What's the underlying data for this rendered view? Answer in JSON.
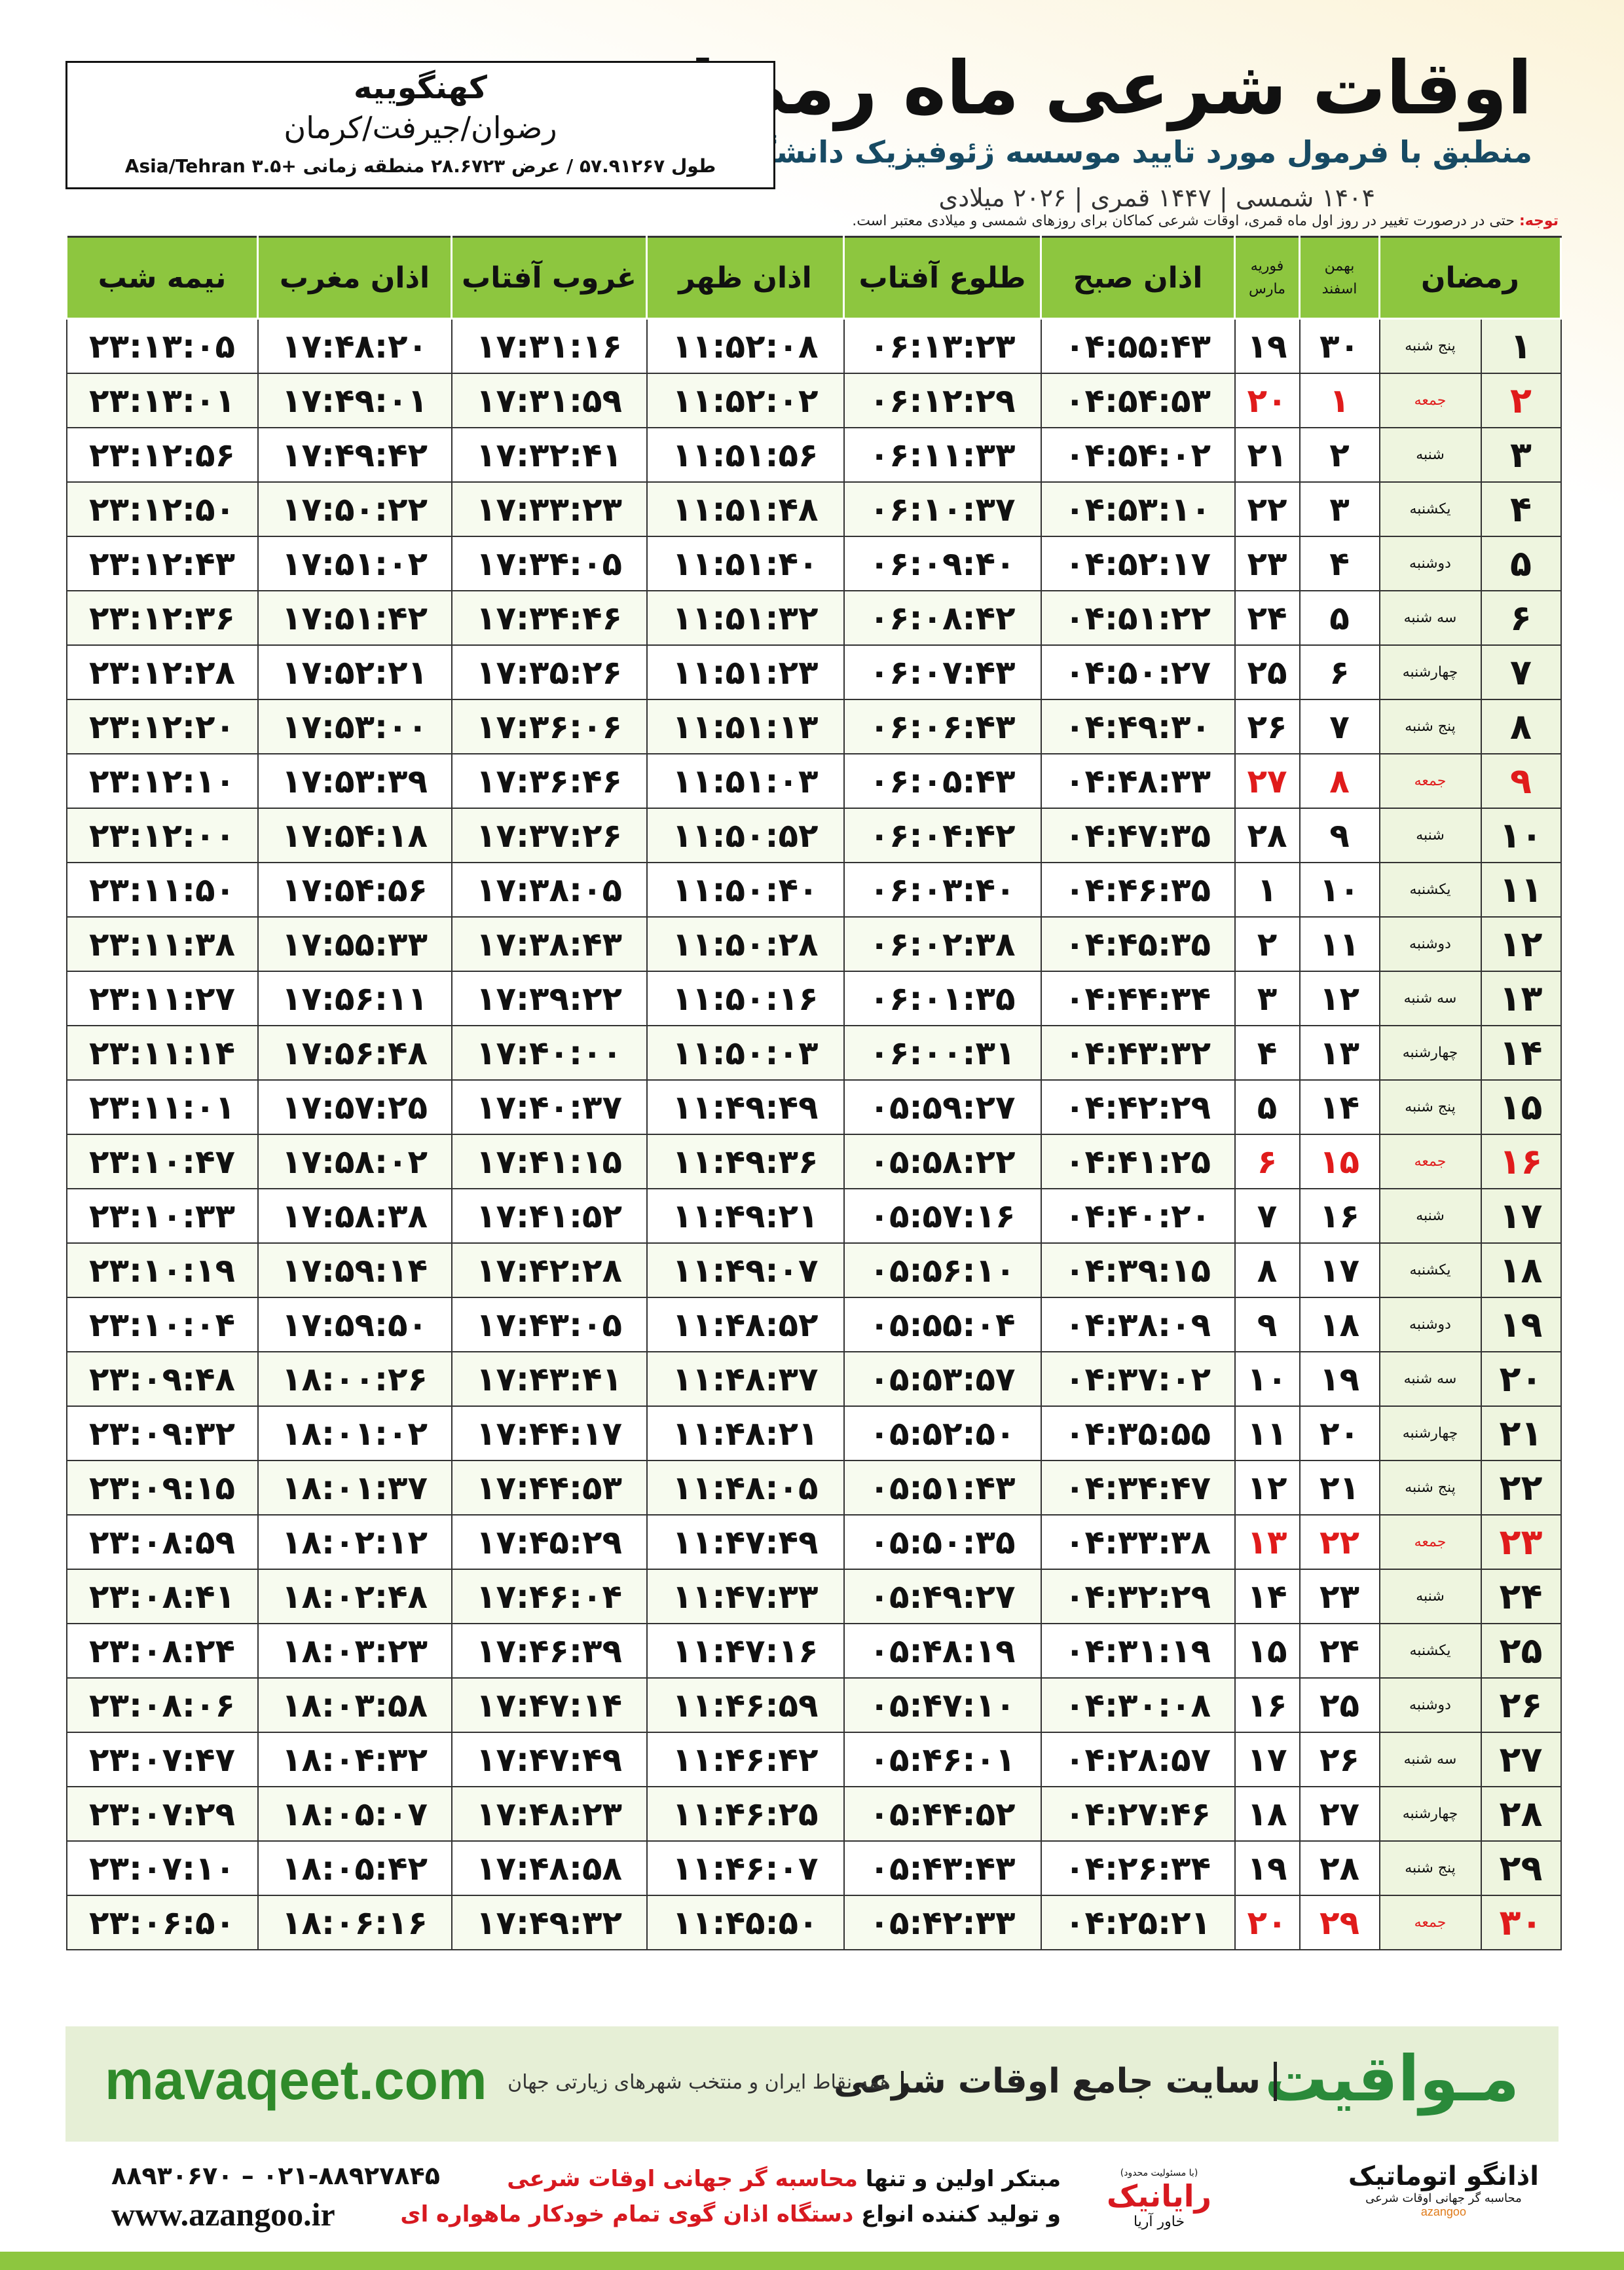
{
  "header": {
    "title": "اوقات شرعی ماه رمضان",
    "subtitle": "منطبق با فرمول مورد تایید موسسه ژئوفیزیک دانشگاه تهران",
    "dates": "۱۴۰۴ شمسی | ۱۴۴۷ قمری | ۲۰۲۶ میلادی"
  },
  "location": {
    "village": "کهنگوییه",
    "region": "رضوان/جیرفت/کرمان",
    "coordinates": "طول ۵۷.۹۱۲۶۷ / عرض ۲۸.۶۷۲۳ منطقه زمانی +۳.۵ Asia/Tehran"
  },
  "note": {
    "label": "توجه:",
    "text": "حتی در درصورت تغییر در روز اول ماه قمری، اوقات شرعی کماکان برای روزهای شمسی و میلادی معتبر است."
  },
  "table": {
    "header": [
      "رمضان",
      [
        "بهمن",
        "اسفند"
      ],
      [
        "فوریه",
        "مارس"
      ],
      "اذان صبح",
      "طلوع آفتاب",
      "اذان ظهر",
      "غروب آفتاب",
      "اذان مغرب",
      "نیمه شب"
    ],
    "rows": [
      [
        "۱",
        "پنج شنبه",
        "۳۰",
        "۱۹",
        "۰۴:۵۵:۴۳",
        "۰۶:۱۳:۲۳",
        "۱۱:۵۲:۰۸",
        "۱۷:۳۱:۱۶",
        "۱۷:۴۸:۲۰",
        "۲۳:۱۳:۰۵"
      ],
      [
        "۲",
        "جمعه",
        "۱",
        "۲۰",
        "۰۴:۵۴:۵۳",
        "۰۶:۱۲:۲۹",
        "۱۱:۵۲:۰۲",
        "۱۷:۳۱:۵۹",
        "۱۷:۴۹:۰۱",
        "۲۳:۱۳:۰۱"
      ],
      [
        "۳",
        "شنبه",
        "۲",
        "۲۱",
        "۰۴:۵۴:۰۲",
        "۰۶:۱۱:۳۳",
        "۱۱:۵۱:۵۶",
        "۱۷:۳۲:۴۱",
        "۱۷:۴۹:۴۲",
        "۲۳:۱۲:۵۶"
      ],
      [
        "۴",
        "یکشنبه",
        "۳",
        "۲۲",
        "۰۴:۵۳:۱۰",
        "۰۶:۱۰:۳۷",
        "۱۱:۵۱:۴۸",
        "۱۷:۳۳:۲۳",
        "۱۷:۵۰:۲۲",
        "۲۳:۱۲:۵۰"
      ],
      [
        "۵",
        "دوشنبه",
        "۴",
        "۲۳",
        "۰۴:۵۲:۱۷",
        "۰۶:۰۹:۴۰",
        "۱۱:۵۱:۴۰",
        "۱۷:۳۴:۰۵",
        "۱۷:۵۱:۰۲",
        "۲۳:۱۲:۴۳"
      ],
      [
        "۶",
        "سه شنبه",
        "۵",
        "۲۴",
        "۰۴:۵۱:۲۲",
        "۰۶:۰۸:۴۲",
        "۱۱:۵۱:۳۲",
        "۱۷:۳۴:۴۶",
        "۱۷:۵۱:۴۲",
        "۲۳:۱۲:۳۶"
      ],
      [
        "۷",
        "چهارشنبه",
        "۶",
        "۲۵",
        "۰۴:۵۰:۲۷",
        "۰۶:۰۷:۴۳",
        "۱۱:۵۱:۲۳",
        "۱۷:۳۵:۲۶",
        "۱۷:۵۲:۲۱",
        "۲۳:۱۲:۲۸"
      ],
      [
        "۸",
        "پنج شنبه",
        "۷",
        "۲۶",
        "۰۴:۴۹:۳۰",
        "۰۶:۰۶:۴۳",
        "۱۱:۵۱:۱۳",
        "۱۷:۳۶:۰۶",
        "۱۷:۵۳:۰۰",
        "۲۳:۱۲:۲۰"
      ],
      [
        "۹",
        "جمعه",
        "۸",
        "۲۷",
        "۰۴:۴۸:۳۳",
        "۰۶:۰۵:۴۳",
        "۱۱:۵۱:۰۳",
        "۱۷:۳۶:۴۶",
        "۱۷:۵۳:۳۹",
        "۲۳:۱۲:۱۰"
      ],
      [
        "۱۰",
        "شنبه",
        "۹",
        "۲۸",
        "۰۴:۴۷:۳۵",
        "۰۶:۰۴:۴۲",
        "۱۱:۵۰:۵۲",
        "۱۷:۳۷:۲۶",
        "۱۷:۵۴:۱۸",
        "۲۳:۱۲:۰۰"
      ],
      [
        "۱۱",
        "یکشنبه",
        "۱۰",
        "۱",
        "۰۴:۴۶:۳۵",
        "۰۶:۰۳:۴۰",
        "۱۱:۵۰:۴۰",
        "۱۷:۳۸:۰۵",
        "۱۷:۵۴:۵۶",
        "۲۳:۱۱:۵۰"
      ],
      [
        "۱۲",
        "دوشنبه",
        "۱۱",
        "۲",
        "۰۴:۴۵:۳۵",
        "۰۶:۰۲:۳۸",
        "۱۱:۵۰:۲۸",
        "۱۷:۳۸:۴۳",
        "۱۷:۵۵:۳۳",
        "۲۳:۱۱:۳۸"
      ],
      [
        "۱۳",
        "سه شنبه",
        "۱۲",
        "۳",
        "۰۴:۴۴:۳۴",
        "۰۶:۰۱:۳۵",
        "۱۱:۵۰:۱۶",
        "۱۷:۳۹:۲۲",
        "۱۷:۵۶:۱۱",
        "۲۳:۱۱:۲۷"
      ],
      [
        "۱۴",
        "چهارشنبه",
        "۱۳",
        "۴",
        "۰۴:۴۳:۳۲",
        "۰۶:۰۰:۳۱",
        "۱۱:۵۰:۰۳",
        "۱۷:۴۰:۰۰",
        "۱۷:۵۶:۴۸",
        "۲۳:۱۱:۱۴"
      ],
      [
        "۱۵",
        "پنج شنبه",
        "۱۴",
        "۵",
        "۰۴:۴۲:۲۹",
        "۰۵:۵۹:۲۷",
        "۱۱:۴۹:۴۹",
        "۱۷:۴۰:۳۷",
        "۱۷:۵۷:۲۵",
        "۲۳:۱۱:۰۱"
      ],
      [
        "۱۶",
        "جمعه",
        "۱۵",
        "۶",
        "۰۴:۴۱:۲۵",
        "۰۵:۵۸:۲۲",
        "۱۱:۴۹:۳۶",
        "۱۷:۴۱:۱۵",
        "۱۷:۵۸:۰۲",
        "۲۳:۱۰:۴۷"
      ],
      [
        "۱۷",
        "شنبه",
        "۱۶",
        "۷",
        "۰۴:۴۰:۲۰",
        "۰۵:۵۷:۱۶",
        "۱۱:۴۹:۲۱",
        "۱۷:۴۱:۵۲",
        "۱۷:۵۸:۳۸",
        "۲۳:۱۰:۳۳"
      ],
      [
        "۱۸",
        "یکشنبه",
        "۱۷",
        "۸",
        "۰۴:۳۹:۱۵",
        "۰۵:۵۶:۱۰",
        "۱۱:۴۹:۰۷",
        "۱۷:۴۲:۲۸",
        "۱۷:۵۹:۱۴",
        "۲۳:۱۰:۱۹"
      ],
      [
        "۱۹",
        "دوشنبه",
        "۱۸",
        "۹",
        "۰۴:۳۸:۰۹",
        "۰۵:۵۵:۰۴",
        "۱۱:۴۸:۵۲",
        "۱۷:۴۳:۰۵",
        "۱۷:۵۹:۵۰",
        "۲۳:۱۰:۰۴"
      ],
      [
        "۲۰",
        "سه شنبه",
        "۱۹",
        "۱۰",
        "۰۴:۳۷:۰۲",
        "۰۵:۵۳:۵۷",
        "۱۱:۴۸:۳۷",
        "۱۷:۴۳:۴۱",
        "۱۸:۰۰:۲۶",
        "۲۳:۰۹:۴۸"
      ],
      [
        "۲۱",
        "چهارشنبه",
        "۲۰",
        "۱۱",
        "۰۴:۳۵:۵۵",
        "۰۵:۵۲:۵۰",
        "۱۱:۴۸:۲۱",
        "۱۷:۴۴:۱۷",
        "۱۸:۰۱:۰۲",
        "۲۳:۰۹:۳۲"
      ],
      [
        "۲۲",
        "پنج شنبه",
        "۲۱",
        "۱۲",
        "۰۴:۳۴:۴۷",
        "۰۵:۵۱:۴۳",
        "۱۱:۴۸:۰۵",
        "۱۷:۴۴:۵۳",
        "۱۸:۰۱:۳۷",
        "۲۳:۰۹:۱۵"
      ],
      [
        "۲۳",
        "جمعه",
        "۲۲",
        "۱۳",
        "۰۴:۳۳:۳۸",
        "۰۵:۵۰:۳۵",
        "۱۱:۴۷:۴۹",
        "۱۷:۴۵:۲۹",
        "۱۸:۰۲:۱۲",
        "۲۳:۰۸:۵۹"
      ],
      [
        "۲۴",
        "شنبه",
        "۲۳",
        "۱۴",
        "۰۴:۳۲:۲۹",
        "۰۵:۴۹:۲۷",
        "۱۱:۴۷:۳۳",
        "۱۷:۴۶:۰۴",
        "۱۸:۰۲:۴۸",
        "۲۳:۰۸:۴۱"
      ],
      [
        "۲۵",
        "یکشنبه",
        "۲۴",
        "۱۵",
        "۰۴:۳۱:۱۹",
        "۰۵:۴۸:۱۹",
        "۱۱:۴۷:۱۶",
        "۱۷:۴۶:۳۹",
        "۱۸:۰۳:۲۳",
        "۲۳:۰۸:۲۴"
      ],
      [
        "۲۶",
        "دوشنبه",
        "۲۵",
        "۱۶",
        "۰۴:۳۰:۰۸",
        "۰۵:۴۷:۱۰",
        "۱۱:۴۶:۵۹",
        "۱۷:۴۷:۱۴",
        "۱۸:۰۳:۵۸",
        "۲۳:۰۸:۰۶"
      ],
      [
        "۲۷",
        "سه شنبه",
        "۲۶",
        "۱۷",
        "۰۴:۲۸:۵۷",
        "۰۵:۴۶:۰۱",
        "۱۱:۴۶:۴۲",
        "۱۷:۴۷:۴۹",
        "۱۸:۰۴:۳۲",
        "۲۳:۰۷:۴۷"
      ],
      [
        "۲۸",
        "چهارشنبه",
        "۲۷",
        "۱۸",
        "۰۴:۲۷:۴۶",
        "۰۵:۴۴:۵۲",
        "۱۱:۴۶:۲۵",
        "۱۷:۴۸:۲۳",
        "۱۸:۰۵:۰۷",
        "۲۳:۰۷:۲۹"
      ],
      [
        "۲۹",
        "پنج شنبه",
        "۲۸",
        "۱۹",
        "۰۴:۲۶:۳۴",
        "۰۵:۴۳:۴۳",
        "۱۱:۴۶:۰۷",
        "۱۷:۴۸:۵۸",
        "۱۸:۰۵:۴۲",
        "۲۳:۰۷:۱۰"
      ],
      [
        "۳۰",
        "جمعه",
        "۲۹",
        "۲۰",
        "۰۴:۲۵:۲۱",
        "۰۵:۴۲:۳۳",
        "۱۱:۴۵:۵۰",
        "۱۷:۴۹:۳۲",
        "۱۸:۰۶:۱۶",
        "۲۳:۰۶:۵۰"
      ]
    ]
  },
  "banner": {
    "brand": "مـواقیت",
    "site": "سایت جامع اوقات شرعی",
    "subtitle": "همه نقاط ایران و منتخب شهرهای زیارتی جهان",
    "url": "mavaqeet.com"
  },
  "footer": {
    "phone": "۰۲۱-۸۸۹۲۷۸۴۵ – ۸۸۹۳۰۶۷۰",
    "website": "www.azangoo.ir",
    "line1": [
      "مبتکر اولین و تنها ",
      "محاسبه گر جهانی اوقات شرعی"
    ],
    "line2": [
      "و تولید کننده انواع ",
      "دستگاه اذان گوی تمام خودکار ماهواره ای"
    ],
    "logo1": {
      "note": "(با مسئولیت محدود)",
      "name": "رایانیک",
      "sub": "خاور آریا"
    },
    "logo2": {
      "name": "اذانگو اتوماتیک",
      "sub": "محاسبه گر جهانی اوقات شرعی",
      "en": "azangoo"
    }
  }
}
